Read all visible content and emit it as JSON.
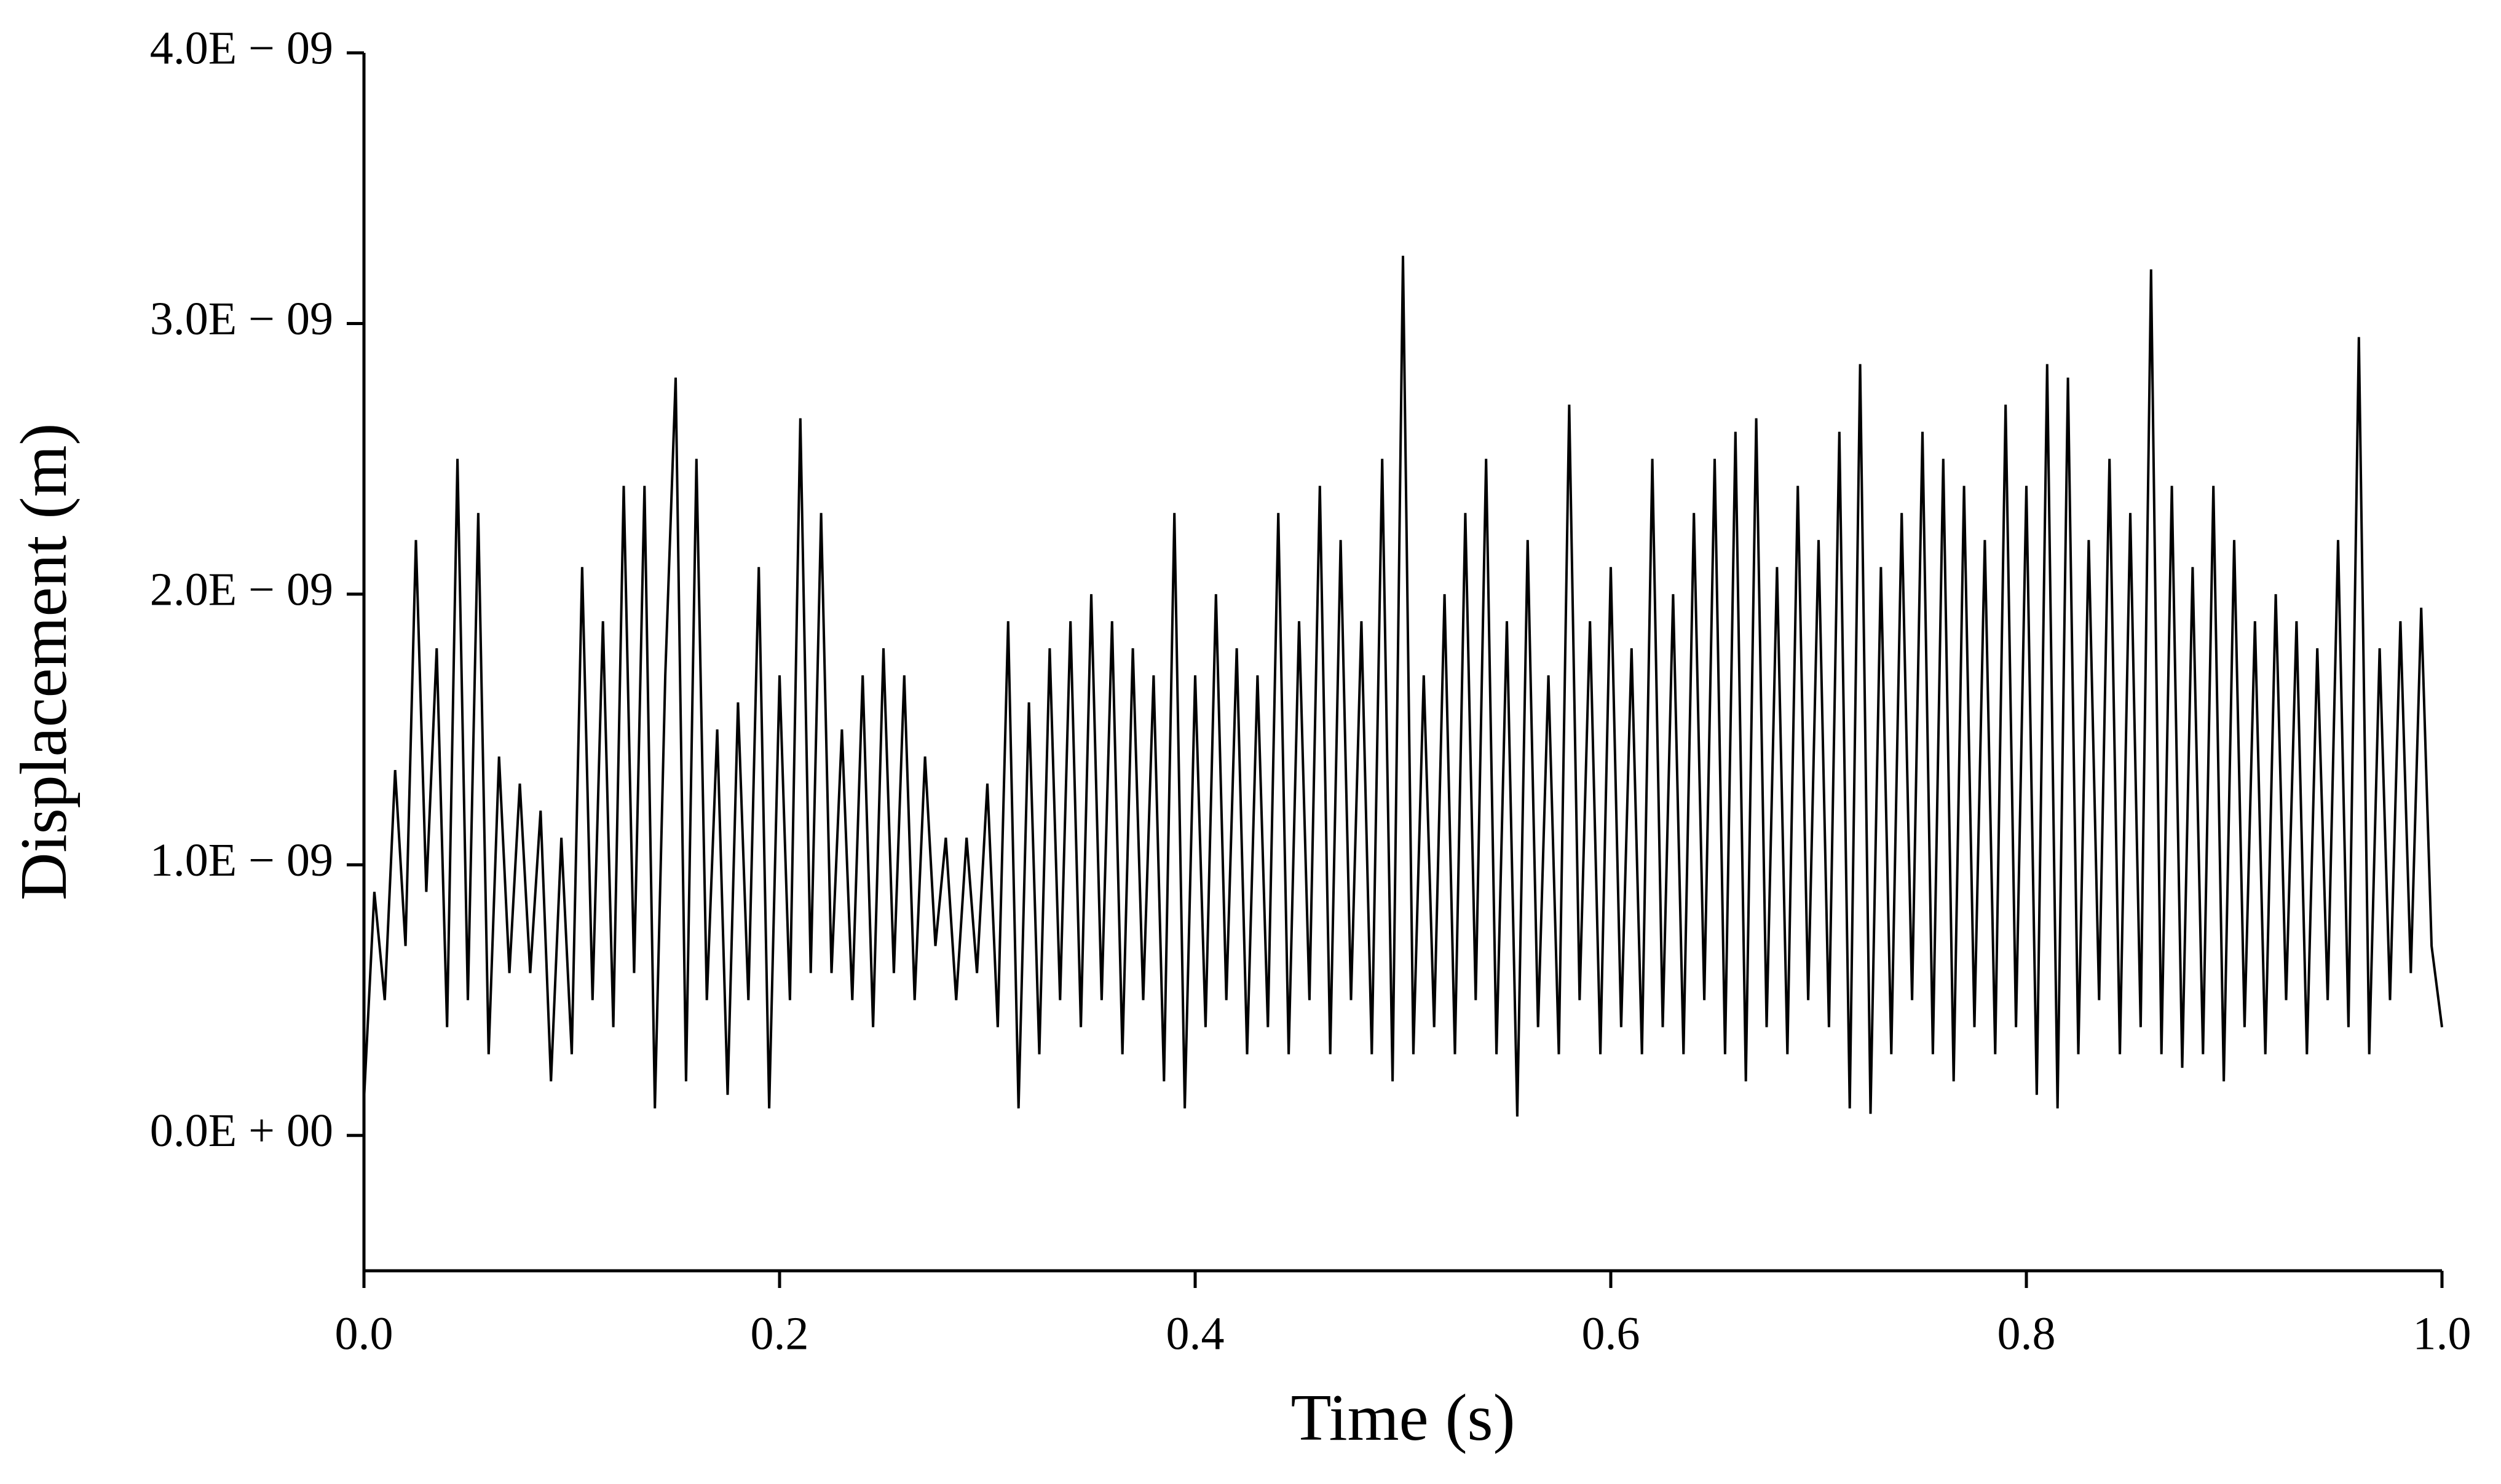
{
  "chart_data": {
    "type": "line",
    "x_label": "Time (s)",
    "y_label": "Displacement (m)",
    "x": [
      0,
      0.005,
      0.01,
      0.015,
      0.02,
      0.025,
      0.03,
      0.035,
      0.04,
      0.045,
      0.05,
      0.055,
      0.06,
      0.065,
      0.07,
      0.075,
      0.08,
      0.085,
      0.09,
      0.095,
      0.1,
      0.105,
      0.11,
      0.115,
      0.12,
      0.125,
      0.13,
      0.135,
      0.14,
      0.145,
      0.15,
      0.155,
      0.16,
      0.165,
      0.17,
      0.175,
      0.18,
      0.185,
      0.19,
      0.195,
      0.2,
      0.205,
      0.21,
      0.215,
      0.22,
      0.225,
      0.23,
      0.235,
      0.24,
      0.245,
      0.25,
      0.255,
      0.26,
      0.265,
      0.27,
      0.275,
      0.28,
      0.285,
      0.29,
      0.295,
      0.3,
      0.305,
      0.31,
      0.315,
      0.32,
      0.325,
      0.33,
      0.335,
      0.34,
      0.345,
      0.35,
      0.355,
      0.36,
      0.365,
      0.37,
      0.375,
      0.38,
      0.385,
      0.39,
      0.395,
      0.4,
      0.405,
      0.41,
      0.415,
      0.42,
      0.425,
      0.43,
      0.435,
      0.44,
      0.445,
      0.45,
      0.455,
      0.46,
      0.465,
      0.47,
      0.475,
      0.48,
      0.485,
      0.49,
      0.495,
      0.5,
      0.505,
      0.51,
      0.515,
      0.52,
      0.525,
      0.53,
      0.535,
      0.54,
      0.545,
      0.55,
      0.555,
      0.56,
      0.565,
      0.57,
      0.575,
      0.58,
      0.585,
      0.59,
      0.595,
      0.6,
      0.605,
      0.61,
      0.615,
      0.62,
      0.625,
      0.63,
      0.635,
      0.64,
      0.645,
      0.65,
      0.655,
      0.66,
      0.665,
      0.67,
      0.675,
      0.68,
      0.685,
      0.69,
      0.695,
      0.7,
      0.705,
      0.71,
      0.715,
      0.72,
      0.725,
      0.73,
      0.735,
      0.74,
      0.745,
      0.75,
      0.755,
      0.76,
      0.765,
      0.77,
      0.775,
      0.78,
      0.785,
      0.79,
      0.795,
      0.8,
      0.805,
      0.81,
      0.815,
      0.82,
      0.825,
      0.83,
      0.835,
      0.84,
      0.845,
      0.85,
      0.855,
      0.86,
      0.865,
      0.87,
      0.875,
      0.88,
      0.885,
      0.89,
      0.895,
      0.9,
      0.905,
      0.91,
      0.915,
      0.92,
      0.925,
      0.93,
      0.935,
      0.94,
      0.945,
      0.95,
      0.955,
      0.96,
      0.965,
      0.97,
      0.975,
      0.98,
      0.985,
      0.99,
      0.995,
      1
    ],
    "series": [
      {
        "color": "#000000",
        "values": [
          1.3e-10,
          9e-10,
          5e-10,
          1.35e-09,
          7e-10,
          2.2e-09,
          9e-10,
          1.8e-09,
          4e-10,
          2.5e-09,
          5e-10,
          2.3e-09,
          3e-10,
          1.4e-09,
          6e-10,
          1.3e-09,
          6e-10,
          1.2e-09,
          2e-10,
          1.1e-09,
          3e-10,
          2.1e-09,
          5e-10,
          1.9e-09,
          4e-10,
          2.4e-09,
          6e-10,
          2.4e-09,
          1e-10,
          1.7e-09,
          2.8e-09,
          2e-10,
          2.5e-09,
          5e-10,
          1.5e-09,
          1.5e-10,
          1.6e-09,
          5e-10,
          2.1e-09,
          1e-10,
          1.7e-09,
          5e-10,
          2.65e-09,
          6e-10,
          2.3e-09,
          6e-10,
          1.5e-09,
          5e-10,
          1.7e-09,
          4e-10,
          1.8e-09,
          6e-10,
          1.7e-09,
          5e-10,
          1.4e-09,
          7e-10,
          1.1e-09,
          5e-10,
          1.1e-09,
          6e-10,
          1.3e-09,
          4e-10,
          1.9e-09,
          1e-10,
          1.6e-09,
          3e-10,
          1.8e-09,
          5e-10,
          1.9e-09,
          4e-10,
          2e-09,
          5e-10,
          1.9e-09,
          3e-10,
          1.8e-09,
          5e-10,
          1.7e-09,
          2e-10,
          2.3e-09,
          1e-10,
          1.7e-09,
          4e-10,
          2e-09,
          5e-10,
          1.8e-09,
          3e-10,
          1.7e-09,
          4e-10,
          2.3e-09,
          3e-10,
          1.9e-09,
          5e-10,
          2.4e-09,
          3e-10,
          2.2e-09,
          5e-10,
          1.9e-09,
          3e-10,
          2.5e-09,
          2e-10,
          3.25e-09,
          3e-10,
          1.7e-09,
          4e-10,
          2e-09,
          3e-10,
          2.3e-09,
          5e-10,
          2.5e-09,
          3e-10,
          1.9e-09,
          7e-11,
          2.2e-09,
          4e-10,
          1.7e-09,
          3e-10,
          2.7e-09,
          5e-10,
          1.9e-09,
          3e-10,
          2.1e-09,
          4e-10,
          1.8e-09,
          3e-10,
          2.5e-09,
          4e-10,
          2e-09,
          3e-10,
          2.3e-09,
          5e-10,
          2.5e-09,
          3e-10,
          2.6e-09,
          2e-10,
          2.65e-09,
          4e-10,
          2.1e-09,
          3e-10,
          2.4e-09,
          5e-10,
          2.2e-09,
          4e-10,
          2.6e-09,
          1e-10,
          2.85e-09,
          8e-11,
          2.1e-09,
          3e-10,
          2.3e-09,
          5e-10,
          2.6e-09,
          3e-10,
          2.5e-09,
          2e-10,
          2.4e-09,
          4e-10,
          2.2e-09,
          3e-10,
          2.7e-09,
          4e-10,
          2.4e-09,
          1.5e-10,
          2.85e-09,
          1e-10,
          2.8e-09,
          3e-10,
          2.2e-09,
          5e-10,
          2.5e-09,
          3e-10,
          2.3e-09,
          4e-10,
          3.2e-09,
          3e-10,
          2.4e-09,
          2.5e-10,
          2.1e-09,
          3e-10,
          2.4e-09,
          2e-10,
          2.2e-09,
          4e-10,
          1.9e-09,
          3e-10,
          2e-09,
          5e-10,
          1.9e-09,
          3e-10,
          1.8e-09,
          5e-10,
          2.2e-09,
          4e-10,
          2.95e-09,
          3e-10,
          1.8e-09,
          5e-10,
          1.9e-09,
          6e-10,
          1.95e-09,
          7e-10,
          4e-10
        ]
      }
    ],
    "xlim": [
      0,
      1
    ],
    "xticks": [
      {
        "value": 0,
        "label": "0.0"
      },
      0.2,
      0.4,
      0.6,
      0.8,
      {
        "value": 1,
        "label": "1.0"
      }
    ],
    "ylim": [
      -5e-10,
      4e-09
    ],
    "yticks": [
      {
        "value": 0,
        "label": "0.0E + 00"
      },
      {
        "value": 1e-09,
        "label": "1.0E − 09"
      },
      {
        "value": 2e-09,
        "label": "2.0E − 09"
      },
      {
        "value": 3e-09,
        "label": "3.0E − 09"
      },
      {
        "value": 4e-09,
        "label": "4.0E − 09"
      }
    ]
  }
}
